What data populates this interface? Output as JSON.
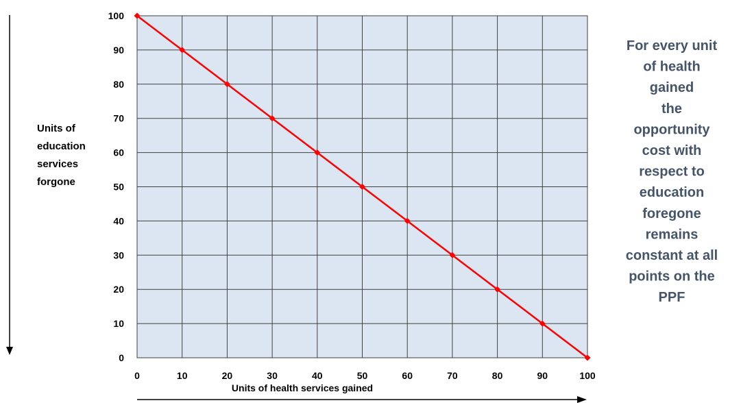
{
  "chart_data": {
    "type": "line",
    "x": [
      0,
      10,
      20,
      30,
      40,
      50,
      60,
      70,
      80,
      90,
      100
    ],
    "series": [
      {
        "values": [
          100,
          90,
          80,
          70,
          60,
          50,
          40,
          30,
          20,
          10,
          0
        ]
      }
    ],
    "x_ticks": [
      "0",
      "10",
      "20",
      "30",
      "40",
      "50",
      "60",
      "70",
      "80",
      "90",
      "100"
    ],
    "y_ticks": [
      "0",
      "10",
      "20",
      "30",
      "40",
      "50",
      "60",
      "70",
      "80",
      "90",
      "100"
    ],
    "xlabel": "Units of health services gained",
    "ylabel_lines": [
      "Units of",
      "education",
      "services",
      "forgone"
    ],
    "xlim": [
      0,
      100
    ],
    "ylim": [
      0,
      100
    ],
    "grid": true,
    "annotation_lines": [
      "For every unit",
      "of health",
      "gained",
      "the",
      "opportunity",
      "cost with",
      "respect to",
      "education",
      "foregone",
      "remains",
      "constant at all",
      "points on the",
      "PPF"
    ],
    "colors": {
      "plot_background": "#dce6f2",
      "grid": "#3f3f3f",
      "line": "#ff0000",
      "annotation": "#44546a",
      "text": "#000000"
    }
  }
}
